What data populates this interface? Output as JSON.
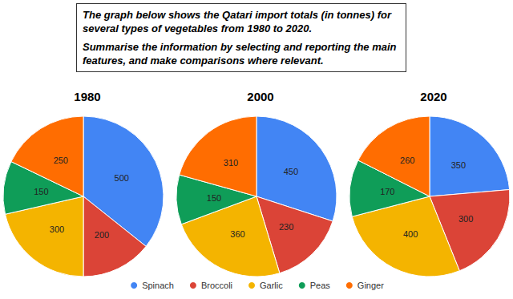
{
  "text_box": [
    "The graph below shows the Qatari import totals (in tonnes) for several types of vegetables from 1980 to 2020.",
    "Summarise the information by selecting and reporting the main features, and make comparisons where relevant."
  ],
  "chart_data": [
    {
      "type": "pie",
      "title": "1980",
      "categories": [
        "Spinach",
        "Broccoli",
        "Garlic",
        "Peas",
        "Ginger"
      ],
      "values": [
        500,
        200,
        300,
        150,
        250
      ],
      "colors": [
        "#4285f4",
        "#db4437",
        "#f4b400",
        "#0f9d58",
        "#ff6d01"
      ],
      "data_labels": true,
      "legend": "bottom"
    },
    {
      "type": "pie",
      "title": "2000",
      "categories": [
        "Spinach",
        "Broccoli",
        "Garlic",
        "Peas",
        "Ginger"
      ],
      "values": [
        450,
        230,
        360,
        150,
        310
      ],
      "colors": [
        "#4285f4",
        "#db4437",
        "#f4b400",
        "#0f9d58",
        "#ff6d01"
      ],
      "data_labels": true,
      "legend": "bottom"
    },
    {
      "type": "pie",
      "title": "2020",
      "categories": [
        "Spinach",
        "Broccoli",
        "Garlic",
        "Peas",
        "Ginger"
      ],
      "values": [
        350,
        300,
        400,
        170,
        260
      ],
      "colors": [
        "#4285f4",
        "#db4437",
        "#f4b400",
        "#0f9d58",
        "#ff6d01"
      ],
      "data_labels": true,
      "legend": "bottom"
    }
  ]
}
